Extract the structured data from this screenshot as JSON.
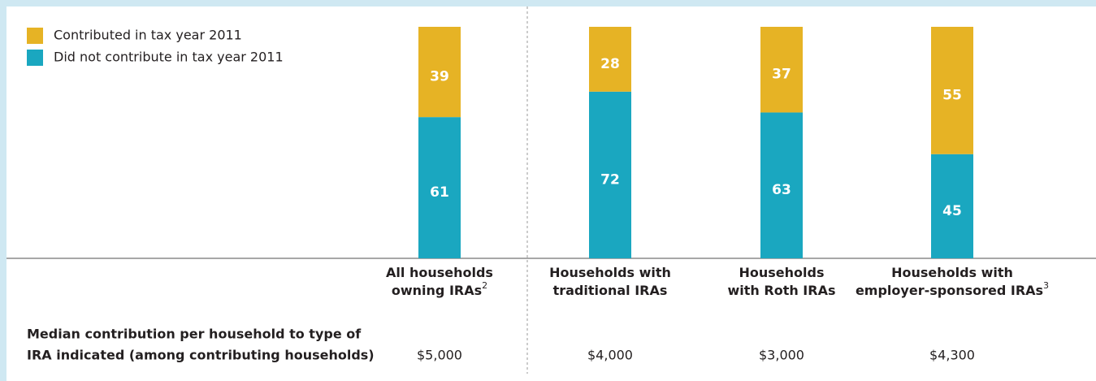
{
  "chart_data": {
    "type": "stacked_bar",
    "categories": [
      {
        "lines": [
          "All households",
          "owning IRAs"
        ],
        "footnote": "2"
      },
      {
        "lines": [
          "Households with",
          "traditional IRAs"
        ]
      },
      {
        "lines": [
          "Households",
          "with Roth IRAs"
        ]
      },
      {
        "lines": [
          "Households with",
          "employer-sponsored IRAs"
        ],
        "footnote": "3"
      }
    ],
    "series": [
      {
        "name": "Contributed in tax year 2011",
        "color": "#e6b325",
        "values": [
          39,
          28,
          37,
          55
        ]
      },
      {
        "name": "Did not contribute in tax year 2011",
        "color": "#1aa7c0",
        "values": [
          61,
          72,
          63,
          45
        ]
      }
    ],
    "ylim": [
      0,
      100
    ],
    "median_contribution": {
      "label": [
        "Median contribution per household to type of",
        "IRA indicated (among contributing households)"
      ],
      "values": [
        5000,
        4000,
        3000,
        4300
      ],
      "value_labels": [
        "$5,000",
        "$4,000",
        "$3,000",
        "$4,300"
      ]
    }
  }
}
